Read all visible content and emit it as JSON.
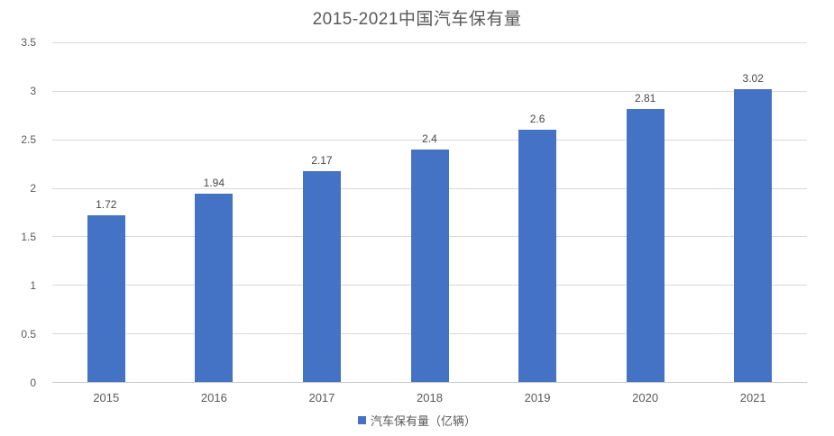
{
  "chart_data": {
    "type": "bar",
    "title": "2015-2021中国汽车保有量",
    "categories": [
      "2015",
      "2016",
      "2017",
      "2018",
      "2019",
      "2020",
      "2021"
    ],
    "values": [
      1.72,
      1.94,
      2.17,
      2.4,
      2.6,
      2.81,
      3.02
    ],
    "value_labels": [
      "1.72",
      "1.94",
      "2.17",
      "2.4",
      "2.6",
      "2.81",
      "3.02"
    ],
    "series_name": "汽车保有量（亿辆）",
    "xlabel": "",
    "ylabel": "",
    "ylim": [
      0,
      3.5
    ],
    "yticks": [
      0,
      0.5,
      1,
      1.5,
      2,
      2.5,
      3,
      3.5
    ],
    "ytick_labels": [
      "0",
      "0.5",
      "1",
      "1.5",
      "2",
      "2.5",
      "3",
      "3.5"
    ],
    "grid": true,
    "legend_position": "bottom",
    "legend_marker": "square-icon",
    "colors": {
      "bar": "#4472C4",
      "gridline": "#D9D9D9",
      "axis_line": "#C9C9C9",
      "text": "#595959",
      "background": "#FFFFFF"
    }
  }
}
